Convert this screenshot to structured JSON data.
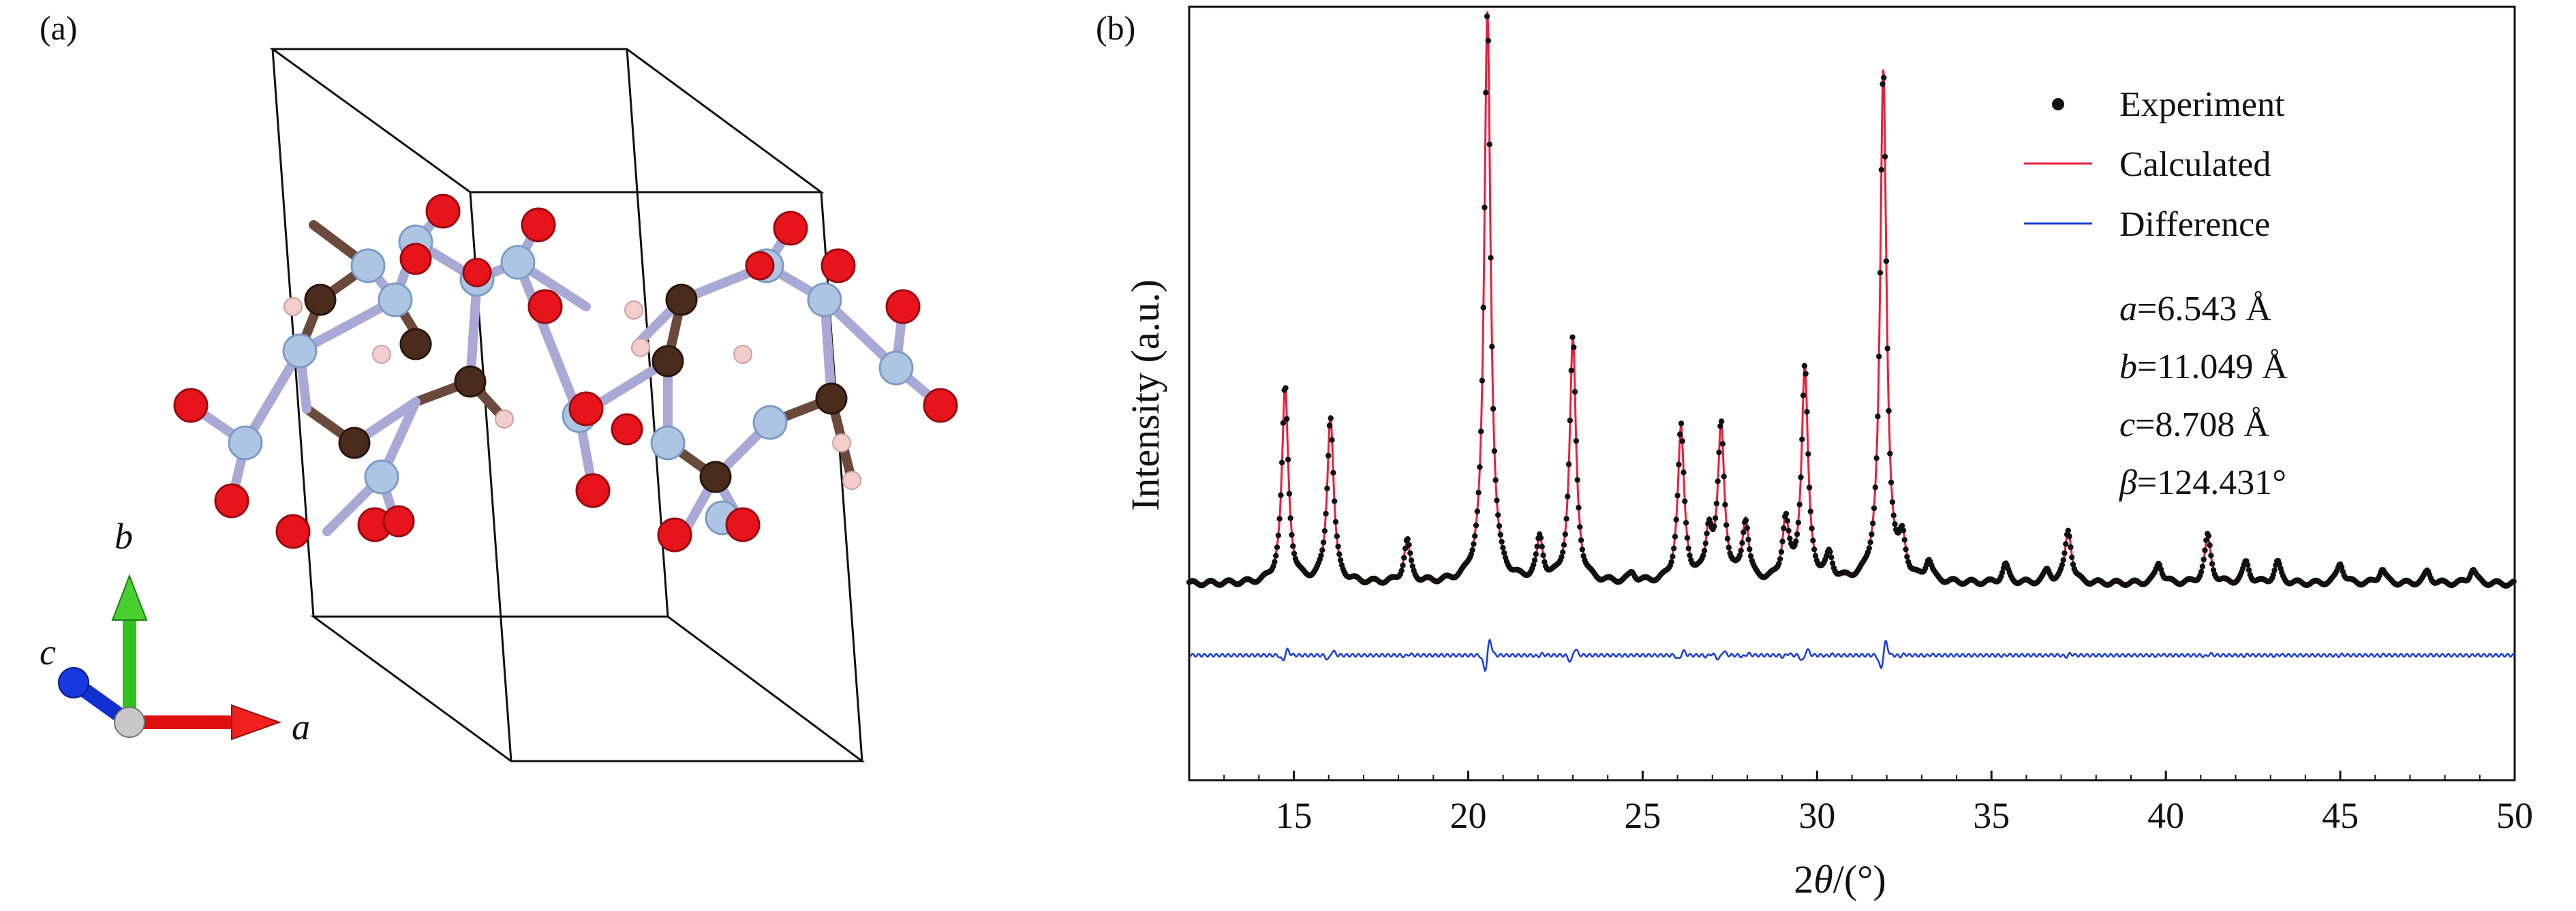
{
  "panels": {
    "a_label": "(a)",
    "b_label": "(b)"
  },
  "crystal": {
    "axes": {
      "a": "a",
      "b": "b",
      "c": "c"
    },
    "colors": {
      "oxygen": "#e8141c",
      "carbon": "#4b2b1c",
      "boron": "#aac4e4",
      "hydrogen": "#f0cccc",
      "axis_a": "#e01010",
      "axis_b": "#30c020",
      "axis_c": "#1030d0"
    }
  },
  "chart_data": {
    "type": "line",
    "title": "",
    "xlabel_prefix": "2",
    "xlabel_theta": "θ",
    "xlabel_suffix": "/(°)",
    "ylabel": "Intensity (a.u.)",
    "xlim": [
      12,
      50
    ],
    "xticks": [
      15,
      20,
      25,
      30,
      35,
      40,
      45,
      50
    ],
    "ylim": [
      0,
      100
    ],
    "yticks_visible": false,
    "grid": false,
    "legend_position": "top-right",
    "series": [
      {
        "name": "Experiment",
        "style": "points",
        "color": "#111111"
      },
      {
        "name": "Calculated",
        "style": "line",
        "color": "#e8203c"
      },
      {
        "name": "Difference",
        "style": "line",
        "color": "#1a3cd6"
      }
    ],
    "baseline": 3,
    "peaks": [
      {
        "x": 14.75,
        "h": 33
      },
      {
        "x": 16.05,
        "h": 28
      },
      {
        "x": 18.25,
        "h": 7
      },
      {
        "x": 20.55,
        "h": 96
      },
      {
        "x": 22.05,
        "h": 7
      },
      {
        "x": 23.0,
        "h": 41
      },
      {
        "x": 24.7,
        "h": 1.5
      },
      {
        "x": 26.1,
        "h": 26
      },
      {
        "x": 26.9,
        "h": 8
      },
      {
        "x": 27.25,
        "h": 26
      },
      {
        "x": 27.95,
        "h": 10
      },
      {
        "x": 29.1,
        "h": 10
      },
      {
        "x": 29.65,
        "h": 36
      },
      {
        "x": 30.35,
        "h": 4
      },
      {
        "x": 31.9,
        "h": 86
      },
      {
        "x": 32.45,
        "h": 6
      },
      {
        "x": 33.2,
        "h": 3.5
      },
      {
        "x": 35.4,
        "h": 3
      },
      {
        "x": 36.6,
        "h": 2
      },
      {
        "x": 37.2,
        "h": 9
      },
      {
        "x": 39.8,
        "h": 3.5
      },
      {
        "x": 41.2,
        "h": 8
      },
      {
        "x": 42.3,
        "h": 3.5
      },
      {
        "x": 43.2,
        "h": 3.5
      },
      {
        "x": 45.0,
        "h": 3.5
      },
      {
        "x": 46.2,
        "h": 2.5
      },
      {
        "x": 47.5,
        "h": 2
      },
      {
        "x": 48.8,
        "h": 2.5
      }
    ],
    "difference_offset": -9,
    "annotations": [
      {
        "sym": "a",
        "text": "=6.543 Å"
      },
      {
        "sym": "b",
        "text": "=11.049 Å"
      },
      {
        "sym": "c",
        "text": "=8.708 Å"
      },
      {
        "sym": "β",
        "text": "=124.431°"
      }
    ]
  }
}
